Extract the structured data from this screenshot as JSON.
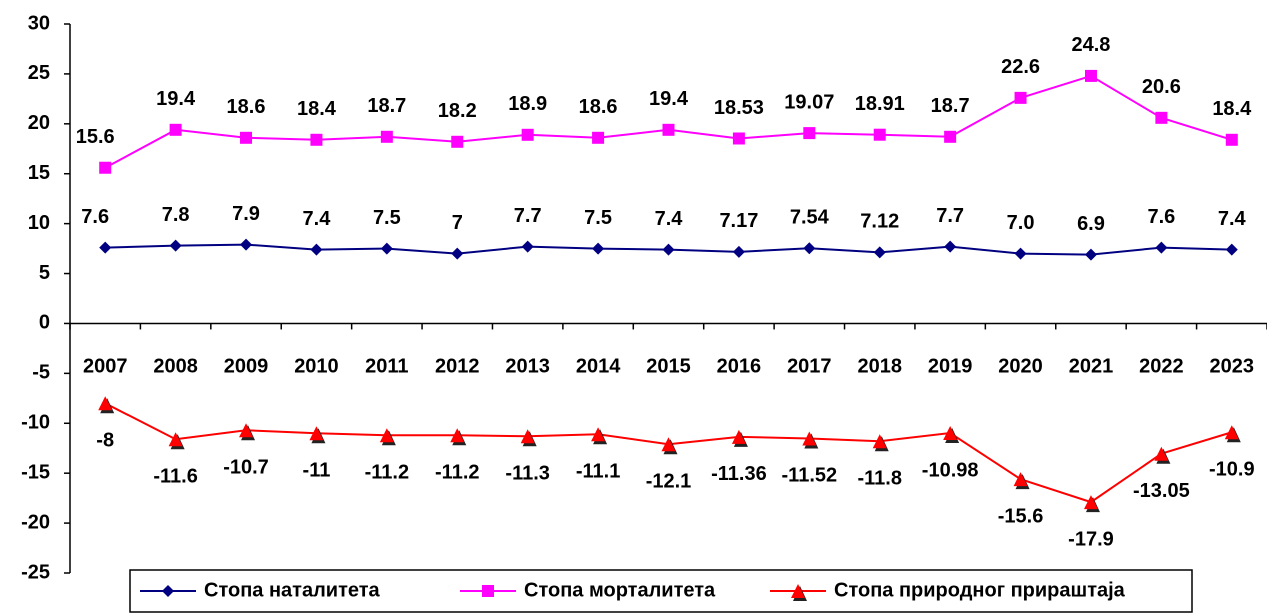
{
  "chart_data": {
    "type": "line",
    "categories": [
      "2007",
      "2008",
      "2009",
      "2010",
      "2011",
      "2012",
      "2013",
      "2014",
      "2015",
      "2016",
      "2017",
      "2018",
      "2019",
      "2020",
      "2021",
      "2022",
      "2023"
    ],
    "series": [
      {
        "name": "Стопа наталитета",
        "color": "#000080",
        "marker": "diamond",
        "values": [
          7.6,
          7.8,
          7.9,
          7.4,
          7.5,
          7,
          7.7,
          7.5,
          7.4,
          7.17,
          7.54,
          7.12,
          7.7,
          7.0,
          6.9,
          7.6,
          7.4
        ],
        "value_labels": [
          "7.6",
          "7.8",
          "7.9",
          "7.4",
          "7.5",
          "7",
          "7.7",
          "7.5",
          "7.4",
          "7.17",
          "7.54",
          "7.12",
          "7.7",
          "7.0",
          "6.9",
          "7.6",
          "7.4"
        ]
      },
      {
        "name": "Стопа морталитета",
        "color": "#ff00ff",
        "marker": "square",
        "values": [
          15.6,
          19.4,
          18.6,
          18.4,
          18.7,
          18.2,
          18.9,
          18.6,
          19.4,
          18.53,
          19.07,
          18.91,
          18.7,
          22.6,
          24.8,
          20.6,
          18.4
        ],
        "value_labels": [
          "15.6",
          "19.4",
          "18.6",
          "18.4",
          "18.7",
          "18.2",
          "18.9",
          "18.6",
          "19.4",
          "18.53",
          "19.07",
          "18.91",
          "18.7",
          "22.6",
          "24.8",
          "20.6",
          "18.4"
        ]
      },
      {
        "name": "Стопа природног прираштаја",
        "color": "#ff0000",
        "marker": "triangle",
        "values": [
          -8,
          -11.6,
          -10.7,
          -11,
          -11.2,
          -11.2,
          -11.3,
          -11.1,
          -12.1,
          -11.36,
          -11.52,
          -11.8,
          -10.98,
          -15.6,
          -17.9,
          -13.05,
          -10.9
        ],
        "value_labels": [
          "-8",
          "-11.6",
          "-10.7",
          "-11",
          "-11.2",
          "-11.2",
          "-11.3",
          "-11.1",
          "-12.1",
          "-11.36",
          "-11.52",
          "-11.8",
          "-10.98",
          "-15.6",
          "-17.9",
          "-13.05",
          "-10.9"
        ]
      }
    ],
    "ylim": [
      -25,
      30
    ],
    "yticks": [
      -25,
      -20,
      -15,
      -10,
      -5,
      0,
      5,
      10,
      15,
      20,
      25,
      30
    ],
    "legend": "bottom"
  }
}
